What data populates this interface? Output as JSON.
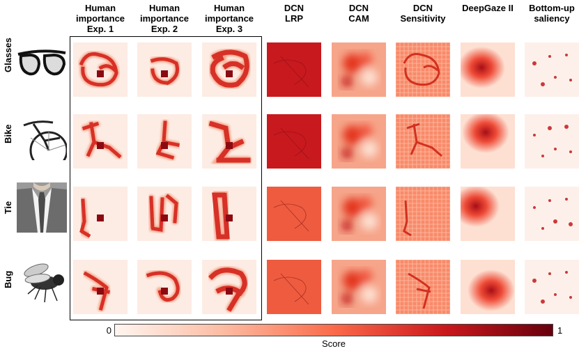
{
  "columns": [
    {
      "label_line1": "Human",
      "label_line2": "importance",
      "label_line3": "Exp. 1"
    },
    {
      "label_line1": "Human",
      "label_line2": "importance",
      "label_line3": "Exp. 2"
    },
    {
      "label_line1": "Human",
      "label_line2": "importance",
      "label_line3": "Exp. 3"
    },
    {
      "label_line1": "DCN",
      "label_line2": "LRP",
      "label_line3": ""
    },
    {
      "label_line1": "DCN",
      "label_line2": "CAM",
      "label_line3": ""
    },
    {
      "label_line1": "DCN",
      "label_line2": "Sensitivity",
      "label_line3": ""
    },
    {
      "label_line1": "DeepGaze II",
      "label_line2": "",
      "label_line3": ""
    },
    {
      "label_line1": "Bottom-up",
      "label_line2": "saliency",
      "label_line3": ""
    }
  ],
  "rows": [
    {
      "label": "Glasses",
      "image": "glasses-photo"
    },
    {
      "label": "Bike",
      "image": "bicycle-photo"
    },
    {
      "label": "Tie",
      "image": "suit-tie-photo"
    },
    {
      "label": "Bug",
      "image": "fly-photo"
    }
  ],
  "colorbar": {
    "min_label": "0",
    "max_label": "1",
    "title": "Score",
    "colormap": "Reds",
    "colors": [
      "#fff5f0",
      "#fcbba1",
      "#fb6a4a",
      "#cb181d",
      "#67000d"
    ]
  }
}
